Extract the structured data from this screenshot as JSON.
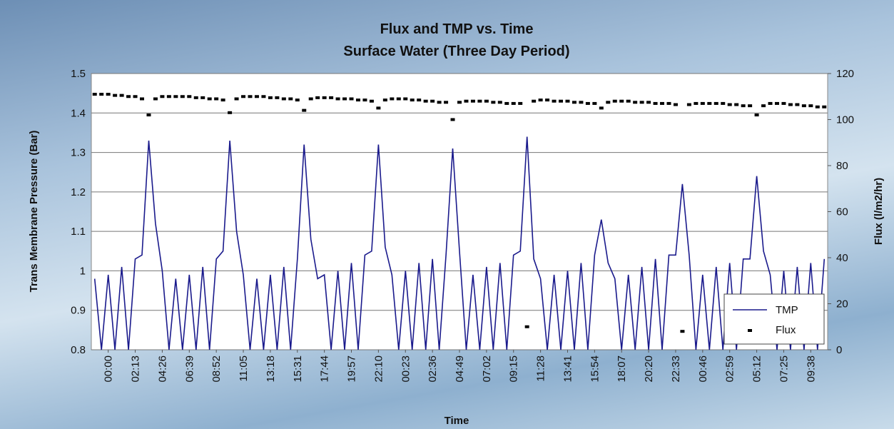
{
  "chart_data": {
    "type": "line",
    "title": "Flux and TMP vs. Time",
    "subtitle": "Surface Water (Three Day Period)",
    "x_label": "Time",
    "y_label": "Trans Membrane Pressure (Bar)",
    "y2_label": "Flux (l/m2/hr)",
    "categories": [
      null,
      null,
      "00:00",
      null,
      null,
      null,
      "02:13",
      null,
      null,
      null,
      "04:26",
      null,
      null,
      null,
      "06:39",
      null,
      null,
      null,
      "08:52",
      null,
      null,
      null,
      "11:05",
      null,
      null,
      null,
      "13:18",
      null,
      null,
      null,
      "15:31",
      null,
      null,
      null,
      "17:44",
      null,
      null,
      null,
      "19:57",
      null,
      null,
      null,
      "22:10",
      null,
      null,
      null,
      "00:23",
      null,
      null,
      null,
      "02:36",
      null,
      null,
      null,
      "04:49",
      null,
      null,
      null,
      "07:02",
      null,
      null,
      null,
      "09:15",
      null,
      null,
      null,
      "11:28",
      null,
      null,
      null,
      "13:41",
      null,
      null,
      null,
      "15:54",
      null,
      null,
      null,
      "18:07",
      null,
      null,
      null,
      "20:20",
      null,
      null,
      null,
      "22:33",
      null,
      null,
      null,
      "00:46",
      null,
      null,
      null,
      "02:59",
      null,
      null,
      null,
      "05:12",
      null,
      null,
      null,
      "07:25",
      null,
      null,
      null,
      "09:38",
      null,
      null
    ],
    "series": [
      {
        "name": "TMP",
        "color": "#1a1a8c",
        "style": "line",
        "values": [
          0.98,
          0.8,
          0.99,
          0.8,
          1.01,
          0.8,
          1.03,
          1.04,
          1.33,
          1.12,
          1.0,
          0.8,
          0.98,
          0.8,
          0.99,
          0.8,
          1.01,
          0.8,
          1.03,
          1.05,
          1.33,
          1.1,
          0.99,
          0.8,
          0.98,
          0.8,
          0.99,
          0.8,
          1.01,
          0.8,
          1.03,
          1.32,
          1.08,
          0.98,
          0.99,
          0.8,
          1.0,
          0.8,
          1.02,
          0.8,
          1.04,
          1.05,
          1.32,
          1.06,
          0.99,
          0.8,
          1.0,
          0.8,
          1.02,
          0.8,
          1.03,
          0.8,
          1.04,
          1.31,
          1.05,
          0.8,
          0.99,
          0.8,
          1.01,
          0.8,
          1.02,
          0.8,
          1.04,
          1.05,
          1.34,
          1.03,
          0.98,
          0.8,
          0.99,
          0.8,
          1.0,
          0.8,
          1.02,
          0.8,
          1.04,
          1.13,
          1.02,
          0.98,
          0.8,
          0.99,
          0.8,
          1.01,
          0.8,
          1.03,
          0.8,
          1.04,
          1.04,
          1.22,
          1.04,
          0.8,
          0.99,
          0.8,
          1.01,
          0.8,
          1.02,
          0.8,
          1.03,
          1.03,
          1.24,
          1.05,
          0.99,
          0.8,
          1.0,
          0.8,
          1.01,
          0.8,
          1.02,
          0.8,
          1.03
        ]
      },
      {
        "name": "Flux",
        "color": "#000000",
        "style": "marker",
        "axis": "y2",
        "values": [
          111,
          111,
          111,
          110.5,
          110.5,
          110,
          110,
          109,
          102,
          109,
          110,
          110,
          110,
          110,
          110,
          109.5,
          109.5,
          109,
          109,
          108.5,
          103,
          109,
          110,
          110,
          110,
          110,
          109.5,
          109.5,
          109,
          109,
          108.5,
          104,
          109,
          109.5,
          109.5,
          109.5,
          109,
          109,
          109,
          108.5,
          108.5,
          108,
          105,
          108.5,
          109,
          109,
          109,
          108.5,
          108.5,
          108,
          108,
          107.5,
          107.5,
          100,
          107.5,
          108,
          108,
          108,
          108,
          107.5,
          107.5,
          107,
          107,
          107,
          10,
          108,
          108.5,
          108.5,
          108,
          108,
          108,
          107.5,
          107.5,
          107,
          107,
          105,
          107.5,
          108,
          108,
          108,
          107.5,
          107.5,
          107.5,
          107,
          107,
          107,
          106.5,
          8,
          106.5,
          107,
          107,
          107,
          107,
          107,
          106.5,
          106.5,
          106,
          106,
          102,
          106,
          107,
          107,
          107,
          106.5,
          106.5,
          106,
          106,
          105.5,
          105.5
        ]
      }
    ],
    "ylim": [
      0.8,
      1.5
    ],
    "yticks": [
      0.8,
      0.9,
      1,
      1.1,
      1.2,
      1.3,
      1.4,
      1.5
    ],
    "y2lim": [
      0,
      120
    ],
    "y2ticks": [
      0,
      20,
      40,
      60,
      80,
      100,
      120
    ],
    "grid": true,
    "legend": "lower right"
  }
}
